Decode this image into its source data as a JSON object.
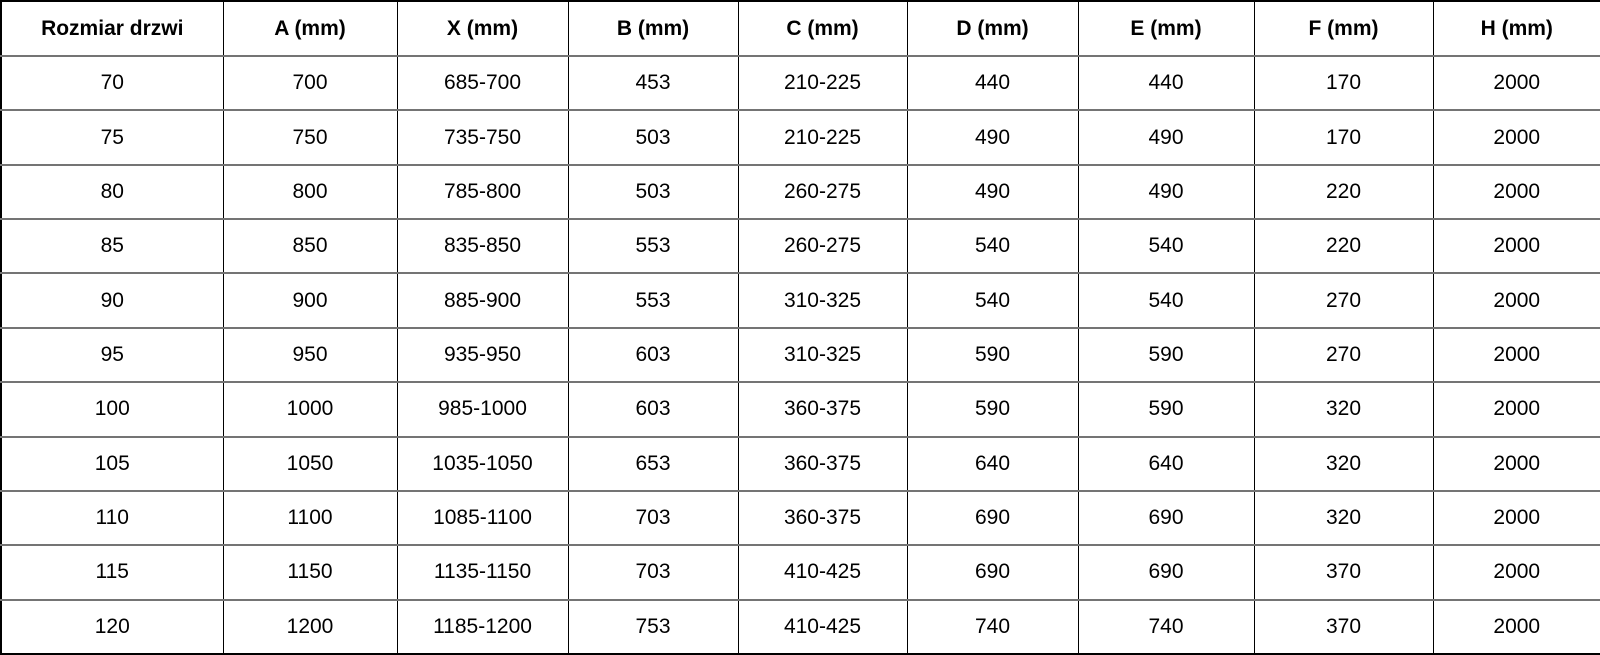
{
  "table": {
    "columns": [
      "Rozmiar drzwi",
      "A (mm)",
      "X (mm)",
      "B (mm)",
      "C (mm)",
      "D (mm)",
      "E (mm)",
      "F (mm)",
      "H (mm)"
    ],
    "rows": [
      [
        "70",
        "700",
        "685-700",
        "453",
        "210-225",
        "440",
        "440",
        "170",
        "2000"
      ],
      [
        "75",
        "750",
        "735-750",
        "503",
        "210-225",
        "490",
        "490",
        "170",
        "2000"
      ],
      [
        "80",
        "800",
        "785-800",
        "503",
        "260-275",
        "490",
        "490",
        "220",
        "2000"
      ],
      [
        "85",
        "850",
        "835-850",
        "553",
        "260-275",
        "540",
        "540",
        "220",
        "2000"
      ],
      [
        "90",
        "900",
        "885-900",
        "553",
        "310-325",
        "540",
        "540",
        "270",
        "2000"
      ],
      [
        "95",
        "950",
        "935-950",
        "603",
        "310-325",
        "590",
        "590",
        "270",
        "2000"
      ],
      [
        "100",
        "1000",
        "985-1000",
        "603",
        "360-375",
        "590",
        "590",
        "320",
        "2000"
      ],
      [
        "105",
        "1050",
        "1035-1050",
        "653",
        "360-375",
        "640",
        "640",
        "320",
        "2000"
      ],
      [
        "110",
        "1100",
        "1085-1100",
        "703",
        "360-375",
        "690",
        "690",
        "320",
        "2000"
      ],
      [
        "115",
        "1150",
        "1135-1150",
        "703",
        "410-425",
        "690",
        "690",
        "370",
        "2000"
      ],
      [
        "120",
        "1200",
        "1185-1200",
        "753",
        "410-425",
        "740",
        "740",
        "370",
        "2000"
      ]
    ]
  },
  "colors": {
    "background": "#ffffff",
    "text": "#000000",
    "border_outer": "#000000",
    "border_vertical": "#000000",
    "border_horizontal": "#747474"
  }
}
